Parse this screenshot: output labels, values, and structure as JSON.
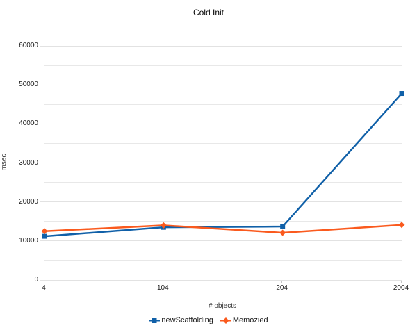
{
  "chart_data": {
    "type": "line",
    "title": "Cold Init",
    "xlabel": "# objects",
    "ylabel": "msec",
    "categories": [
      "4",
      "104",
      "204",
      "2004"
    ],
    "series": [
      {
        "name": "newScaffolding",
        "color": "#1060a8",
        "marker": "square",
        "values": [
          11200,
          13500,
          13700,
          47800
        ]
      },
      {
        "name": "Memozied",
        "color": "#fa5a1e",
        "marker": "diamond",
        "values": [
          12500,
          14000,
          12100,
          14100
        ]
      }
    ],
    "ylim": [
      0,
      60000
    ],
    "y_major_step": 10000,
    "y_minor_step": 5000,
    "grid": true,
    "legend_position": "bottom",
    "colors": {
      "background": "#ffffff",
      "gridline": "#e8e8e8",
      "axis_border": "#dadada",
      "tick": "#c6c6c6",
      "text": "#1a1a1a"
    }
  }
}
